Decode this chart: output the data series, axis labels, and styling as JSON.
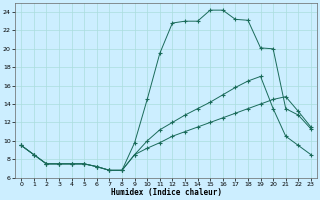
{
  "title": "",
  "xlabel": "Humidex (Indice chaleur)",
  "bg_color": "#cceeff",
  "line_color": "#1a6b5a",
  "grid_color": "#aadddd",
  "xlim": [
    -0.5,
    23.5
  ],
  "ylim": [
    6,
    25
  ],
  "yticks": [
    6,
    8,
    10,
    12,
    14,
    16,
    18,
    20,
    22,
    24
  ],
  "xticks": [
    0,
    1,
    2,
    3,
    4,
    5,
    6,
    7,
    8,
    9,
    10,
    11,
    12,
    13,
    14,
    15,
    16,
    17,
    18,
    19,
    20,
    21,
    22,
    23
  ],
  "series1_y": [
    9.5,
    8.5,
    7.5,
    7.5,
    7.5,
    7.5,
    7.2,
    6.8,
    6.8,
    9.8,
    14.5,
    19.5,
    22.8,
    23.0,
    23.0,
    24.2,
    24.2,
    23.2,
    23.1,
    20.1,
    20.0,
    13.5,
    12.8,
    11.3
  ],
  "series2_y": [
    9.5,
    8.5,
    7.5,
    7.5,
    7.5,
    7.5,
    7.2,
    6.8,
    6.8,
    8.5,
    10.0,
    11.2,
    12.0,
    12.8,
    13.5,
    14.2,
    15.0,
    15.8,
    16.5,
    17.0,
    13.5,
    10.5,
    9.5,
    8.5
  ],
  "series3_y": [
    9.5,
    8.5,
    7.5,
    7.5,
    7.5,
    7.5,
    7.2,
    6.8,
    6.8,
    8.5,
    9.2,
    9.8,
    10.5,
    11.0,
    11.5,
    12.0,
    12.5,
    13.0,
    13.5,
    14.0,
    14.5,
    14.8,
    13.2,
    11.5
  ]
}
